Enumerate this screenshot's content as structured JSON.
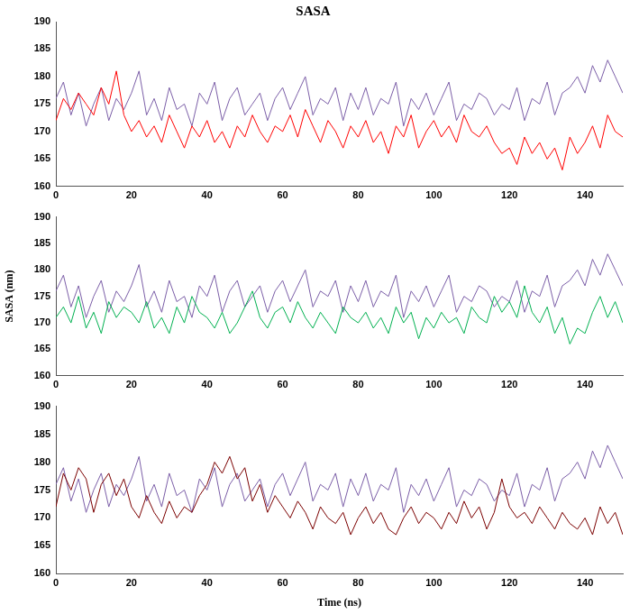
{
  "chart_data": [
    {
      "type": "line",
      "title": "SASA",
      "x": [
        0,
        2,
        4,
        6,
        8,
        10,
        12,
        14,
        16,
        18,
        20,
        22,
        24,
        26,
        28,
        30,
        32,
        34,
        36,
        38,
        40,
        42,
        44,
        46,
        48,
        50,
        52,
        54,
        56,
        58,
        60,
        62,
        64,
        66,
        68,
        70,
        72,
        74,
        76,
        78,
        80,
        82,
        84,
        86,
        88,
        90,
        92,
        94,
        96,
        98,
        100,
        102,
        104,
        106,
        108,
        110,
        112,
        114,
        116,
        118,
        120,
        122,
        124,
        126,
        128,
        130,
        132,
        134,
        136,
        138,
        140,
        142,
        144,
        146,
        148,
        150
      ],
      "series": [
        {
          "color": "#ff0000",
          "values": [
            172,
            176,
            174,
            177,
            175,
            173,
            178,
            175,
            181,
            173,
            170,
            172,
            169,
            171,
            168,
            173,
            170,
            167,
            171,
            169,
            172,
            168,
            170,
            167,
            171,
            169,
            173,
            170,
            168,
            171,
            170,
            173,
            169,
            174,
            171,
            168,
            172,
            170,
            167,
            171,
            169,
            172,
            168,
            170,
            166,
            171,
            169,
            173,
            167,
            170,
            172,
            169,
            171,
            168,
            173,
            170,
            169,
            171,
            168,
            166,
            167,
            164,
            169,
            166,
            168,
            165,
            167,
            163,
            169,
            166,
            168,
            171,
            167,
            173,
            170,
            169
          ]
        },
        {
          "color": "#7b5ea7",
          "values": [
            176,
            179,
            173,
            177,
            171,
            175,
            178,
            172,
            176,
            174,
            177,
            181,
            173,
            176,
            172,
            178,
            174,
            175,
            171,
            177,
            175,
            179,
            172,
            176,
            178,
            173,
            175,
            177,
            172,
            176,
            178,
            174,
            177,
            180,
            173,
            176,
            175,
            178,
            172,
            177,
            174,
            178,
            173,
            176,
            175,
            179,
            171,
            176,
            174,
            177,
            173,
            176,
            179,
            172,
            175,
            174,
            177,
            176,
            173,
            175,
            174,
            178,
            172,
            176,
            175,
            179,
            173,
            177,
            178,
            180,
            177,
            182,
            179,
            183,
            180,
            177
          ]
        }
      ],
      "xlim": [
        0,
        150
      ],
      "xticks": [
        0,
        20,
        40,
        60,
        80,
        100,
        120,
        140
      ],
      "ylim": [
        160,
        190
      ],
      "yticks": [
        160,
        165,
        170,
        175,
        180,
        185,
        190
      ],
      "grid": false
    },
    {
      "type": "line",
      "y_label": "SASA (nm)",
      "x": [
        0,
        2,
        4,
        6,
        8,
        10,
        12,
        14,
        16,
        18,
        20,
        22,
        24,
        26,
        28,
        30,
        32,
        34,
        36,
        38,
        40,
        42,
        44,
        46,
        48,
        50,
        52,
        54,
        56,
        58,
        60,
        62,
        64,
        66,
        68,
        70,
        72,
        74,
        76,
        78,
        80,
        82,
        84,
        86,
        88,
        90,
        92,
        94,
        96,
        98,
        100,
        102,
        104,
        106,
        108,
        110,
        112,
        114,
        116,
        118,
        120,
        122,
        124,
        126,
        128,
        130,
        132,
        134,
        136,
        138,
        140,
        142,
        144,
        146,
        148,
        150
      ],
      "series": [
        {
          "color": "#00b050",
          "values": [
            171,
            173,
            170,
            175,
            169,
            172,
            168,
            174,
            171,
            173,
            172,
            170,
            174,
            169,
            171,
            168,
            173,
            170,
            175,
            172,
            171,
            169,
            172,
            168,
            170,
            173,
            176,
            171,
            169,
            172,
            173,
            170,
            174,
            171,
            169,
            172,
            170,
            168,
            173,
            171,
            170,
            172,
            169,
            171,
            168,
            173,
            170,
            172,
            167,
            171,
            169,
            172,
            170,
            171,
            168,
            173,
            171,
            170,
            175,
            172,
            174,
            171,
            177,
            172,
            170,
            173,
            168,
            171,
            166,
            169,
            168,
            172,
            175,
            171,
            174,
            170
          ]
        },
        {
          "color": "#7b5ea7",
          "values": [
            176,
            179,
            173,
            177,
            171,
            175,
            178,
            172,
            176,
            174,
            177,
            181,
            173,
            176,
            172,
            178,
            174,
            175,
            171,
            177,
            175,
            179,
            172,
            176,
            178,
            173,
            175,
            177,
            172,
            176,
            178,
            174,
            177,
            180,
            173,
            176,
            175,
            178,
            172,
            177,
            174,
            178,
            173,
            176,
            175,
            179,
            171,
            176,
            174,
            177,
            173,
            176,
            179,
            172,
            175,
            174,
            177,
            176,
            173,
            175,
            174,
            178,
            172,
            176,
            175,
            179,
            173,
            177,
            178,
            180,
            177,
            182,
            179,
            183,
            180,
            177
          ]
        }
      ],
      "xlim": [
        0,
        150
      ],
      "xticks": [
        0,
        20,
        40,
        60,
        80,
        100,
        120,
        140
      ],
      "ylim": [
        160,
        190
      ],
      "yticks": [
        160,
        165,
        170,
        175,
        180,
        185,
        190
      ],
      "grid": false
    },
    {
      "type": "line",
      "x_label": "Time (ns)",
      "x": [
        0,
        2,
        4,
        6,
        8,
        10,
        12,
        14,
        16,
        18,
        20,
        22,
        24,
        26,
        28,
        30,
        32,
        34,
        36,
        38,
        40,
        42,
        44,
        46,
        48,
        50,
        52,
        54,
        56,
        58,
        60,
        62,
        64,
        66,
        68,
        70,
        72,
        74,
        76,
        78,
        80,
        82,
        84,
        86,
        88,
        90,
        92,
        94,
        96,
        98,
        100,
        102,
        104,
        106,
        108,
        110,
        112,
        114,
        116,
        118,
        120,
        122,
        124,
        126,
        128,
        130,
        132,
        134,
        136,
        138,
        140,
        142,
        144,
        146,
        148,
        150
      ],
      "series": [
        {
          "color": "#7b0000",
          "values": [
            172,
            178,
            175,
            179,
            177,
            171,
            176,
            178,
            174,
            177,
            172,
            170,
            174,
            171,
            169,
            173,
            170,
            172,
            171,
            174,
            176,
            180,
            178,
            181,
            177,
            179,
            173,
            176,
            171,
            174,
            172,
            170,
            173,
            171,
            168,
            172,
            170,
            169,
            171,
            167,
            170,
            172,
            169,
            171,
            168,
            167,
            170,
            172,
            169,
            171,
            170,
            168,
            171,
            169,
            173,
            170,
            172,
            168,
            171,
            177,
            172,
            170,
            171,
            169,
            172,
            170,
            168,
            171,
            169,
            168,
            170,
            167,
            172,
            169,
            171,
            167
          ]
        },
        {
          "color": "#7b5ea7",
          "values": [
            176,
            179,
            173,
            177,
            171,
            175,
            178,
            172,
            176,
            174,
            177,
            181,
            173,
            176,
            172,
            178,
            174,
            175,
            171,
            177,
            175,
            179,
            172,
            176,
            178,
            173,
            175,
            177,
            172,
            176,
            178,
            174,
            177,
            180,
            173,
            176,
            175,
            178,
            172,
            177,
            174,
            178,
            173,
            176,
            175,
            179,
            171,
            176,
            174,
            177,
            173,
            176,
            179,
            172,
            175,
            174,
            177,
            176,
            173,
            175,
            174,
            178,
            172,
            176,
            175,
            179,
            173,
            177,
            178,
            180,
            177,
            182,
            179,
            183,
            180,
            177
          ]
        }
      ],
      "xlim": [
        0,
        150
      ],
      "xticks": [
        0,
        20,
        40,
        60,
        80,
        100,
        120,
        140
      ],
      "ylim": [
        160,
        190
      ],
      "yticks": [
        160,
        165,
        170,
        175,
        180,
        185,
        190
      ],
      "grid": false
    }
  ]
}
